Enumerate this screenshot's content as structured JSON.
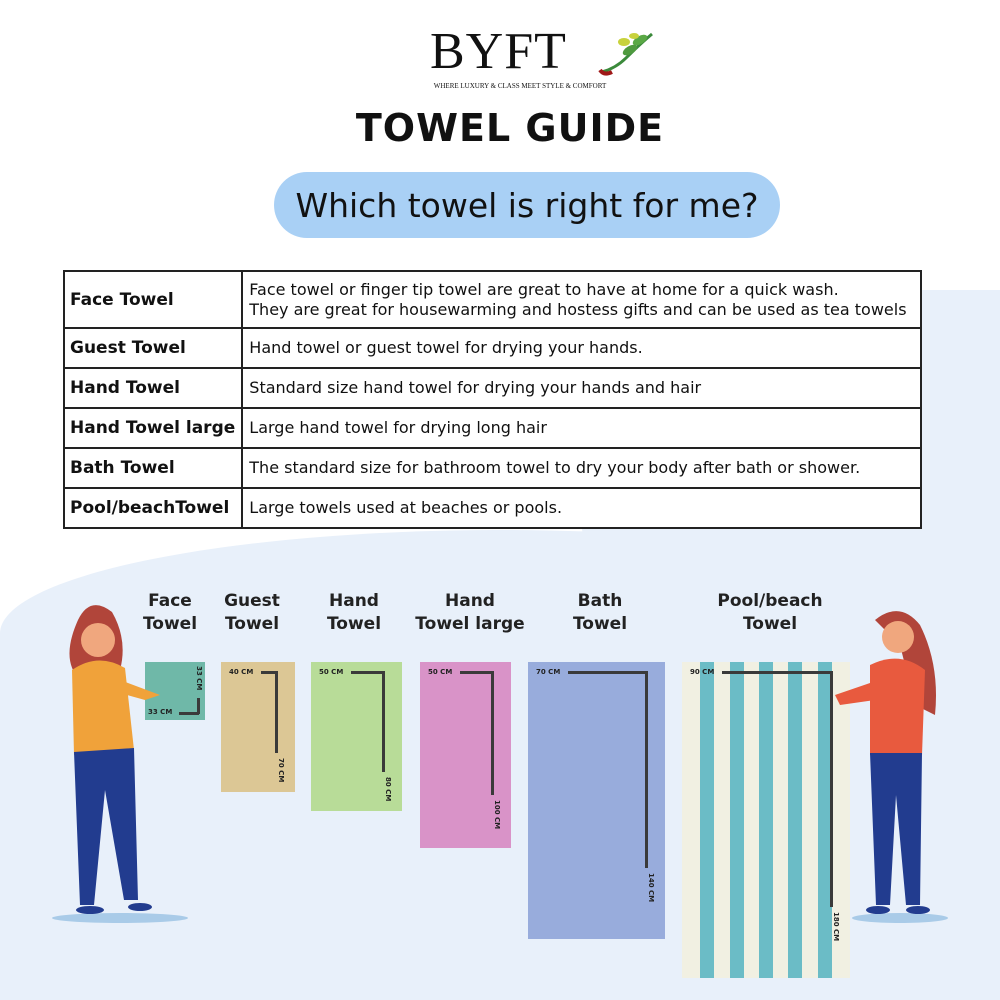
{
  "brand": {
    "logo": "BYFT",
    "tagline": "WHERE LUXURY & CLASS MEET STYLE & COMFORT"
  },
  "title": "TOWEL GUIDE",
  "subtitle": "Which towel is right for me?",
  "table": [
    {
      "name": "Face Towel",
      "desc": "Face towel or finger tip towel are great to have at home for a quick wash.",
      "desc2": "They are great for housewarming and hostess gifts and can be used as tea towels"
    },
    {
      "name": "Guest Towel",
      "desc": "Hand towel or guest towel for drying your hands."
    },
    {
      "name": "Hand Towel",
      "desc": "Standard size hand towel for drying your hands and hair"
    },
    {
      "name": "Hand Towel large",
      "desc": "Large hand towel for drying long hair"
    },
    {
      "name": "Bath Towel",
      "desc": "The standard size for bathroom towel to dry your body after bath or shower."
    },
    {
      "name": "Pool/beachTowel",
      "desc": "Large towels used at beaches or pools."
    }
  ],
  "towels": [
    {
      "line1": "Face",
      "line2": "Towel",
      "width": "33 CM",
      "height": "33 CM",
      "color": "#6fb8a8"
    },
    {
      "line1": "Guest",
      "line2": "Towel",
      "width": "40 CM",
      "height": "70 CM",
      "color": "#dcc795"
    },
    {
      "line1": "Hand",
      "line2": "Towel",
      "width": "50 CM",
      "height": "80 CM",
      "color": "#b8dc98"
    },
    {
      "line1": "Hand",
      "line2": "Towel large",
      "width": "50 CM",
      "height": "100 CM",
      "color": "#d993c8"
    },
    {
      "line1": "Bath",
      "line2": "Towel",
      "width": "70 CM",
      "height": "140 CM",
      "color": "#98acdc"
    },
    {
      "line1": "Pool/beach",
      "line2": "Towel",
      "width": "90 CM",
      "height": "180 CM",
      "color": "#f1f0e2"
    }
  ]
}
